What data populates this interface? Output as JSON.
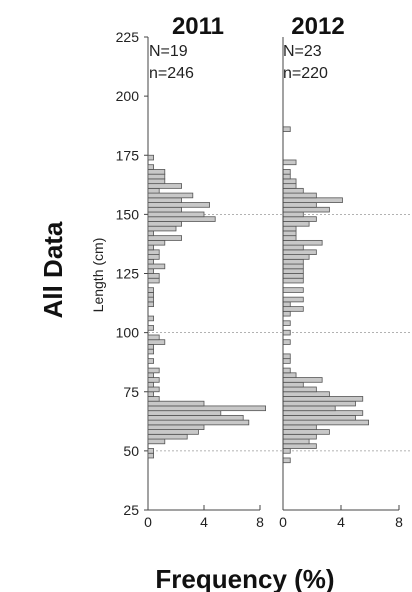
{
  "row_label": "All Data",
  "chart_data": {
    "type": "bar",
    "orientation": "horizontal",
    "ylabel": "Length (cm)",
    "xlabel": "Frequency (%)",
    "ylim": [
      25,
      225
    ],
    "xlim": [
      0,
      8
    ],
    "y_ticks": [
      25,
      50,
      75,
      100,
      125,
      150,
      175,
      200,
      225
    ],
    "x_ticks": [
      0,
      4,
      8
    ],
    "bin_width_cm": 2,
    "reference_lines_cm": [
      50,
      100,
      150
    ],
    "panels": [
      {
        "title": "2011",
        "N": "N=19",
        "n": "n=246",
        "bins": [
          {
            "y": 48,
            "value": 0.4
          },
          {
            "y": 50,
            "value": 0.4
          },
          {
            "y": 54,
            "value": 1.2
          },
          {
            "y": 56,
            "value": 2.8
          },
          {
            "y": 58,
            "value": 3.6
          },
          {
            "y": 60,
            "value": 4.0
          },
          {
            "y": 62,
            "value": 7.2
          },
          {
            "y": 64,
            "value": 6.8
          },
          {
            "y": 66,
            "value": 5.2
          },
          {
            "y": 68,
            "value": 8.4
          },
          {
            "y": 70,
            "value": 4.0
          },
          {
            "y": 72,
            "value": 0.8
          },
          {
            "y": 74,
            "value": 0.4
          },
          {
            "y": 76,
            "value": 0.8
          },
          {
            "y": 78,
            "value": 0.4
          },
          {
            "y": 80,
            "value": 0.8
          },
          {
            "y": 82,
            "value": 0.4
          },
          {
            "y": 84,
            "value": 0.8
          },
          {
            "y": 88,
            "value": 0.4
          },
          {
            "y": 92,
            "value": 0.4
          },
          {
            "y": 94,
            "value": 0.4
          },
          {
            "y": 96,
            "value": 1.2
          },
          {
            "y": 98,
            "value": 0.8
          },
          {
            "y": 102,
            "value": 0.4
          },
          {
            "y": 106,
            "value": 0.4
          },
          {
            "y": 112,
            "value": 0.4
          },
          {
            "y": 114,
            "value": 0.4
          },
          {
            "y": 116,
            "value": 0.4
          },
          {
            "y": 118,
            "value": 0.4
          },
          {
            "y": 122,
            "value": 0.8
          },
          {
            "y": 124,
            "value": 0.8
          },
          {
            "y": 126,
            "value": 0.4
          },
          {
            "y": 128,
            "value": 1.2
          },
          {
            "y": 130,
            "value": 0.4
          },
          {
            "y": 132,
            "value": 0.8
          },
          {
            "y": 134,
            "value": 0.8
          },
          {
            "y": 136,
            "value": 0.4
          },
          {
            "y": 138,
            "value": 1.2
          },
          {
            "y": 140,
            "value": 2.4
          },
          {
            "y": 142,
            "value": 0.4
          },
          {
            "y": 144,
            "value": 2.0
          },
          {
            "y": 146,
            "value": 2.4
          },
          {
            "y": 148,
            "value": 4.8
          },
          {
            "y": 150,
            "value": 4.0
          },
          {
            "y": 152,
            "value": 2.4
          },
          {
            "y": 154,
            "value": 4.4
          },
          {
            "y": 156,
            "value": 2.4
          },
          {
            "y": 158,
            "value": 3.2
          },
          {
            "y": 160,
            "value": 0.8
          },
          {
            "y": 162,
            "value": 2.4
          },
          {
            "y": 164,
            "value": 1.2
          },
          {
            "y": 166,
            "value": 1.2
          },
          {
            "y": 168,
            "value": 1.2
          },
          {
            "y": 170,
            "value": 0.4
          },
          {
            "y": 174,
            "value": 0.4
          }
        ]
      },
      {
        "title": "2012",
        "N": "N=23",
        "n": "n=220",
        "bins": [
          {
            "y": 46,
            "value": 0.5
          },
          {
            "y": 50,
            "value": 0.5
          },
          {
            "y": 52,
            "value": 2.3
          },
          {
            "y": 54,
            "value": 1.8
          },
          {
            "y": 56,
            "value": 2.3
          },
          {
            "y": 58,
            "value": 3.2
          },
          {
            "y": 60,
            "value": 2.3
          },
          {
            "y": 62,
            "value": 5.9
          },
          {
            "y": 64,
            "value": 5.0
          },
          {
            "y": 66,
            "value": 5.5
          },
          {
            "y": 68,
            "value": 3.6
          },
          {
            "y": 70,
            "value": 5.0
          },
          {
            "y": 72,
            "value": 5.5
          },
          {
            "y": 74,
            "value": 3.2
          },
          {
            "y": 76,
            "value": 2.3
          },
          {
            "y": 78,
            "value": 1.4
          },
          {
            "y": 80,
            "value": 2.7
          },
          {
            "y": 82,
            "value": 0.9
          },
          {
            "y": 84,
            "value": 0.5
          },
          {
            "y": 88,
            "value": 0.5
          },
          {
            "y": 90,
            "value": 0.5
          },
          {
            "y": 96,
            "value": 0.5
          },
          {
            "y": 100,
            "value": 0.5
          },
          {
            "y": 104,
            "value": 0.5
          },
          {
            "y": 108,
            "value": 0.5
          },
          {
            "y": 110,
            "value": 1.4
          },
          {
            "y": 112,
            "value": 0.5
          },
          {
            "y": 114,
            "value": 1.4
          },
          {
            "y": 118,
            "value": 1.4
          },
          {
            "y": 122,
            "value": 1.4
          },
          {
            "y": 124,
            "value": 1.4
          },
          {
            "y": 126,
            "value": 1.4
          },
          {
            "y": 128,
            "value": 1.4
          },
          {
            "y": 130,
            "value": 1.4
          },
          {
            "y": 132,
            "value": 1.8
          },
          {
            "y": 134,
            "value": 2.3
          },
          {
            "y": 136,
            "value": 1.4
          },
          {
            "y": 138,
            "value": 2.7
          },
          {
            "y": 140,
            "value": 0.9
          },
          {
            "y": 142,
            "value": 0.9
          },
          {
            "y": 144,
            "value": 0.9
          },
          {
            "y": 146,
            "value": 1.8
          },
          {
            "y": 148,
            "value": 2.3
          },
          {
            "y": 150,
            "value": 1.4
          },
          {
            "y": 152,
            "value": 3.2
          },
          {
            "y": 154,
            "value": 2.3
          },
          {
            "y": 156,
            "value": 4.1
          },
          {
            "y": 158,
            "value": 2.3
          },
          {
            "y": 160,
            "value": 1.4
          },
          {
            "y": 162,
            "value": 0.9
          },
          {
            "y": 164,
            "value": 0.9
          },
          {
            "y": 166,
            "value": 0.5
          },
          {
            "y": 168,
            "value": 0.5
          },
          {
            "y": 172,
            "value": 0.9
          },
          {
            "y": 186,
            "value": 0.5
          }
        ]
      }
    ]
  }
}
